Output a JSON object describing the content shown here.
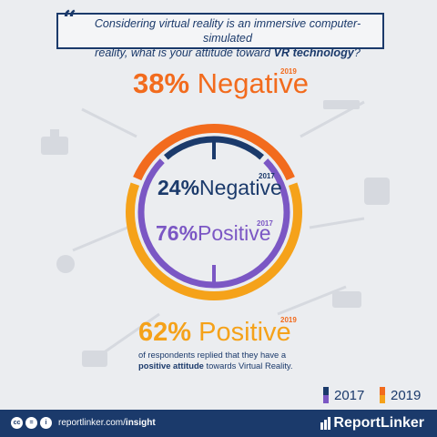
{
  "question": {
    "line1": "Considering virtual reality is an immersive computer-simulated",
    "line2_start": "reality, what is your attitude toward ",
    "line2_bold": "VR technology",
    "line2_end": "?"
  },
  "labels": {
    "neg2019_pct": "38%",
    "neg2019_word": "Negative",
    "neg2019_year": "2019",
    "neg2017_pct": "24%",
    "neg2017_word": "Negative",
    "neg2017_year": "2017",
    "pos2017_pct": "76%",
    "pos2017_word": "Positive",
    "pos2017_year": "2017",
    "pos2019_pct": "62%",
    "pos2019_word": "Positive",
    "pos2019_year": "2019"
  },
  "note": {
    "text1": "of respondents replied that they have a ",
    "bold1": "positive",
    "bold2": "attitude",
    "text2": " towards Virtual Reality."
  },
  "legend": {
    "y2017": "2017",
    "y2019": "2019"
  },
  "footer": {
    "cc": "cc",
    "eq": "=",
    "by": "i",
    "site_start": "reportlinker.com/",
    "site_bold": "insight",
    "brand": "ReportLinker"
  },
  "colors": {
    "navy": "#1b3a6b",
    "purple": "#7b57c4",
    "orange": "#f26b1d",
    "amber": "#f5a21a"
  },
  "chart_data": {
    "type": "pie",
    "title": "Considering virtual reality is an immersive computer-simulated reality, what is your attitude toward VR technology?",
    "series": [
      {
        "name": "2017",
        "categories": [
          "Negative",
          "Positive"
        ],
        "values": [
          24,
          76
        ]
      },
      {
        "name": "2019",
        "categories": [
          "Negative",
          "Positive"
        ],
        "values": [
          38,
          62
        ]
      }
    ]
  }
}
